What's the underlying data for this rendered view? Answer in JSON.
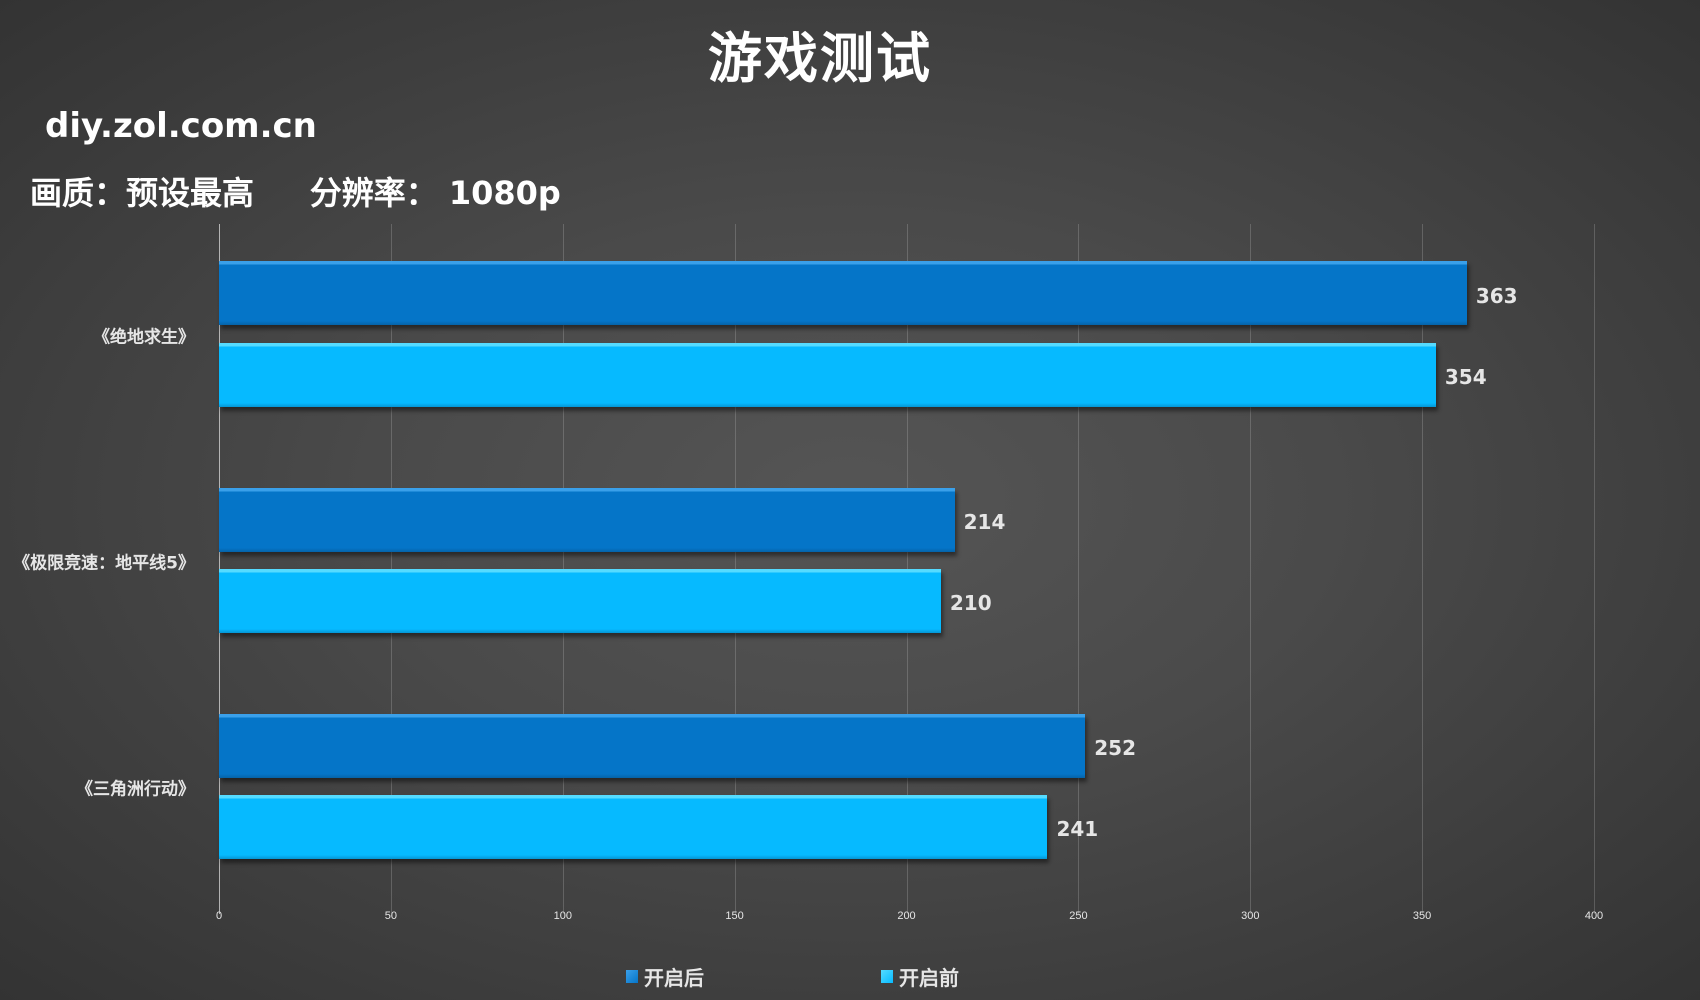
{
  "title": "游戏测试",
  "site": "diy.zol.com.cn",
  "settings": "画质：预设最高     分辨率： 1080p",
  "legend": [
    {
      "label": "开启后",
      "color": "#0575c8"
    },
    {
      "label": "开启前",
      "color": "#06baff"
    }
  ],
  "axis": {
    "ticks": [
      "0",
      "50",
      "100",
      "150",
      "200",
      "250",
      "300",
      "350",
      "400"
    ]
  },
  "categories": [
    {
      "label": "《绝地求生》",
      "after": "363",
      "before": "354"
    },
    {
      "label": "《极限竞速：地平线5》",
      "after": "214",
      "before": "210"
    },
    {
      "label": "《三角洲行动》",
      "after": "252",
      "before": "241"
    }
  ],
  "chart_data": {
    "type": "bar",
    "orientation": "horizontal",
    "title": "游戏测试",
    "subtitle": "画质：预设最高 分辨率： 1080p",
    "annotations": [
      "diy.zol.com.cn"
    ],
    "categories": [
      "《绝地求生》",
      "《极限竞速：地平线5》",
      "《三角洲行动》"
    ],
    "series": [
      {
        "name": "开启后",
        "values": [
          363,
          214,
          252
        ],
        "color": "#0575c8"
      },
      {
        "name": "开启前",
        "values": [
          354,
          210,
          241
        ],
        "color": "#06baff"
      }
    ],
    "xlabel": "",
    "ylabel": "",
    "xlim": [
      0,
      400
    ],
    "xticks": [
      0,
      50,
      100,
      150,
      200,
      250,
      300,
      350,
      400
    ],
    "grid": true,
    "legend_position": "bottom"
  }
}
